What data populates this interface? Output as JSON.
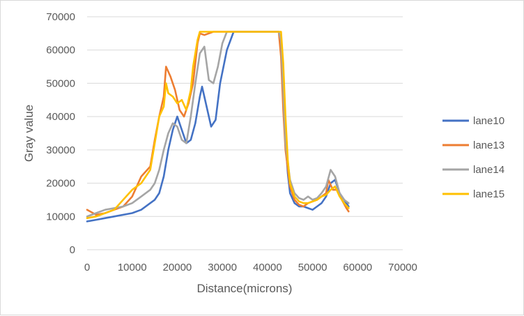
{
  "chart_data": {
    "type": "line",
    "xlabel": "Distance(microns)",
    "ylabel": "Gray value",
    "xlim": [
      0,
      70000
    ],
    "ylim": [
      0,
      70000
    ],
    "x_ticks": [
      "0",
      "10000",
      "20000",
      "30000",
      "40000",
      "50000",
      "60000",
      "70000"
    ],
    "y_ticks": [
      "0",
      "10000",
      "20000",
      "30000",
      "40000",
      "50000",
      "60000",
      "70000"
    ],
    "grid": "horizontal",
    "legend_position": "right",
    "series": [
      {
        "name": "lane10",
        "color": "#4472C4",
        "x": [
          0,
          2000,
          4000,
          6000,
          8000,
          10000,
          12000,
          14000,
          15000,
          16000,
          17000,
          18000,
          19000,
          20000,
          21000,
          22000,
          23000,
          24000,
          25000,
          25500,
          26500,
          27500,
          28500,
          29500,
          31000,
          32500,
          35000,
          40000,
          42500,
          43000,
          43500,
          44000,
          44500,
          45000,
          46000,
          47000,
          48000,
          49000,
          50000,
          51000,
          52000,
          53000,
          54000,
          55000,
          56000,
          57000,
          58000
        ],
        "y": [
          8500,
          9000,
          9500,
          10000,
          10500,
          11000,
          12000,
          14000,
          15000,
          17000,
          22000,
          30000,
          36000,
          40000,
          36000,
          32000,
          33000,
          38000,
          46000,
          49000,
          43000,
          37000,
          39000,
          50000,
          60000,
          65500,
          65500,
          65500,
          65500,
          62000,
          50000,
          33000,
          23000,
          17000,
          14000,
          13000,
          13000,
          12500,
          12000,
          13000,
          14000,
          16000,
          20000,
          21000,
          17000,
          15000,
          13000
        ]
      },
      {
        "name": "lane13",
        "color": "#ED7D31",
        "x": [
          0,
          2000,
          4000,
          6000,
          8000,
          10000,
          12000,
          14000,
          15000,
          16000,
          17000,
          17500,
          18500,
          19500,
          20500,
          21500,
          22500,
          23500,
          24500,
          25000,
          26000,
          28000,
          32000,
          40000,
          42500,
          43000,
          43500,
          44000,
          45000,
          46000,
          47000,
          48000,
          49000,
          50000,
          51000,
          52000,
          53000,
          53500,
          54500,
          55500,
          56500,
          57500,
          58000
        ],
        "y": [
          12000,
          10500,
          11000,
          12000,
          13000,
          16000,
          22000,
          25000,
          33000,
          40000,
          46000,
          55000,
          52000,
          48000,
          42000,
          40000,
          44000,
          50000,
          62000,
          65000,
          64500,
          65500,
          65500,
          65500,
          65500,
          58000,
          42000,
          30000,
          19000,
          15000,
          13500,
          13000,
          14000,
          14500,
          15000,
          16000,
          17000,
          21000,
          18000,
          18000,
          15000,
          12500,
          11500
        ]
      },
      {
        "name": "lane14",
        "color": "#A5A5A5",
        "x": [
          0,
          2000,
          4000,
          6000,
          8000,
          10000,
          12000,
          14000,
          15000,
          16000,
          17000,
          18000,
          19000,
          20000,
          21000,
          22000,
          23000,
          24000,
          25000,
          26000,
          27000,
          28000,
          29000,
          30000,
          31000,
          33000,
          40000,
          42500,
          43000,
          43500,
          44000,
          45000,
          46000,
          47000,
          48000,
          49000,
          50000,
          51000,
          52000,
          53000,
          54000,
          55000,
          56000,
          57000,
          58000
        ],
        "y": [
          10000,
          11000,
          12000,
          12500,
          13000,
          14000,
          16000,
          18000,
          20000,
          24000,
          30000,
          35000,
          38000,
          37000,
          33000,
          32000,
          40000,
          50000,
          59000,
          61000,
          51000,
          50000,
          55000,
          62000,
          65500,
          65500,
          65500,
          65500,
          63000,
          48000,
          32000,
          21000,
          17000,
          15500,
          15000,
          16000,
          15000,
          15500,
          17000,
          19000,
          24000,
          22000,
          17000,
          15000,
          14000
        ]
      },
      {
        "name": "lane15",
        "color": "#FFC000",
        "x": [
          0,
          2000,
          4000,
          6000,
          8000,
          10000,
          12000,
          14000,
          15000,
          16000,
          17000,
          17500,
          18000,
          19000,
          20000,
          21000,
          22000,
          23000,
          23500,
          24500,
          25000,
          26000,
          28000,
          32000,
          40000,
          43000,
          43500,
          44000,
          44500,
          45000,
          46000,
          47000,
          48000,
          49000,
          50000,
          51000,
          52000,
          53000,
          54000,
          55000,
          56000,
          57000,
          58000
        ],
        "y": [
          9500,
          10000,
          11000,
          12000,
          15000,
          18000,
          20000,
          24000,
          32000,
          40000,
          43000,
          50000,
          47000,
          46000,
          44000,
          45000,
          42000,
          48000,
          55000,
          63000,
          65500,
          65500,
          65500,
          65500,
          65500,
          65500,
          56000,
          40000,
          27000,
          20000,
          16000,
          14500,
          14000,
          14000,
          14500,
          15000,
          16000,
          16500,
          18000,
          19000,
          16000,
          14000,
          12500
        ]
      }
    ]
  }
}
